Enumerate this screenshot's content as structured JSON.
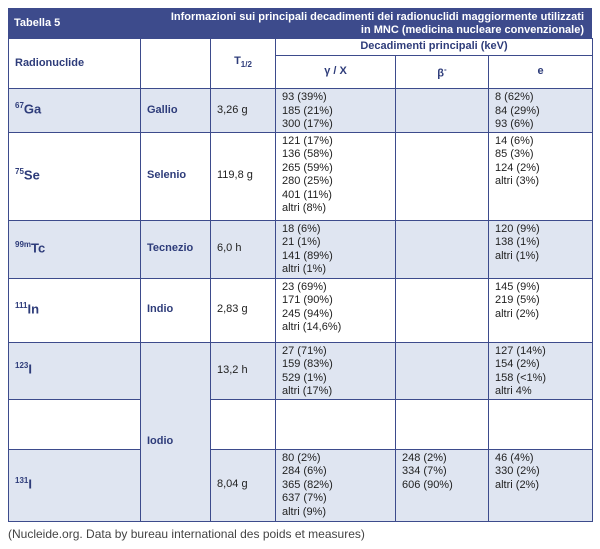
{
  "header": {
    "label": "Tabella 5",
    "title": "Informazioni sui principali decadimenti dei radionuclidi maggiormente utilizzati in MNC  (medicina nucleare convenzionale)"
  },
  "table": {
    "columns": {
      "radionuclide": "Radionuclide",
      "half_life": {
        "base": "T",
        "sub": "1/2"
      },
      "decays": "Decadimenti principali (keV)",
      "gamma": "γ / X",
      "beta": {
        "base": "β",
        "sup": "-"
      },
      "electron": "e"
    },
    "rows": [
      {
        "mass": "67",
        "symbol": "Ga",
        "name": "Gallio",
        "half_life": "3,26 g",
        "gamma": [
          "93 (39%)",
          "185 (21%)",
          "300 (17%)"
        ],
        "beta": [],
        "electron": [
          "8 (62%)",
          "84 (29%)",
          "93 (6%)"
        ]
      },
      {
        "mass": "75",
        "symbol": "Se",
        "name": "Selenio",
        "half_life": "119,8 g",
        "gamma": [
          "121 (17%)",
          "136 (58%)",
          "265 (59%)",
          "280 (25%)",
          "401 (11%)",
          "altri (8%)"
        ],
        "beta": [],
        "electron": [
          "14 (6%)",
          "85 (3%)",
          "124 (2%)",
          "altri (3%)"
        ]
      },
      {
        "mass": "99m",
        "symbol": "Tc",
        "name": "Tecnezio",
        "half_life": "6,0 h",
        "gamma": [
          "18 (6%)",
          "21 (1%)",
          "141 (89%)",
          "altri (1%)"
        ],
        "beta": [],
        "electron": [
          "120 (9%)",
          "138 (1%)",
          "altri (1%)"
        ]
      },
      {
        "mass": "111",
        "symbol": "In",
        "name": "Indio",
        "half_life": "2,83 g",
        "gamma": [
          "23 (69%)",
          "171 (90%)",
          "245 (94%)",
          "altri (14,6%)"
        ],
        "beta": [],
        "electron": [
          "145 (9%)",
          "219 (5%)",
          "altri (2%)"
        ]
      },
      {
        "mass": "123",
        "symbol": "I",
        "name": "Iodio",
        "half_life": "13,2 h",
        "gamma": [
          "27 (71%)",
          "159 (83%)",
          "529 (1%)",
          "altri (17%)"
        ],
        "beta": [],
        "electron": [
          "127 (14%)",
          "154 (2%)",
          "158 (<1%)",
          "altri 4%"
        ]
      },
      {
        "gamma": [],
        "beta": [],
        "electron": []
      },
      {
        "mass": "131",
        "symbol": "I",
        "half_life": "8,04 g",
        "gamma": [
          "80 (2%)",
          "284 (6%)",
          "365 (82%)",
          "637 (7%)",
          "altri (9%)"
        ],
        "beta": [
          "248 (2%)",
          "334 (7%)",
          "606 (90%)"
        ],
        "electron": [
          "46 (4%)",
          "330 (2%)",
          "altri (2%)"
        ]
      }
    ]
  },
  "caption": "(Nucleide.org. Data by bureau international des poids et measures)"
}
